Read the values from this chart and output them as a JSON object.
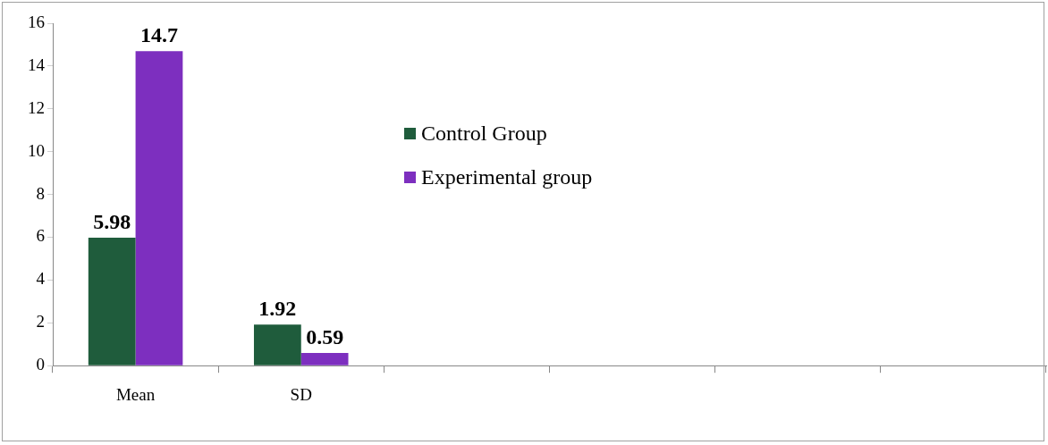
{
  "chart_data": {
    "type": "bar",
    "categories": [
      "Mean",
      "SD",
      null,
      null,
      null,
      null
    ],
    "series": [
      {
        "name": "Control Group",
        "color": "#1f5c3c",
        "values": [
          5.98,
          1.92,
          null,
          null,
          null,
          null
        ]
      },
      {
        "name": "Experimental group",
        "color": "#7d2fbf",
        "values": [
          14.7,
          0.59,
          null,
          null,
          null,
          null
        ]
      }
    ],
    "ylim": [
      0,
      16
    ],
    "yticks": [
      0,
      2,
      4,
      6,
      8,
      10,
      12,
      14,
      16
    ],
    "grid": false,
    "legend": "top",
    "data_labels": true
  }
}
